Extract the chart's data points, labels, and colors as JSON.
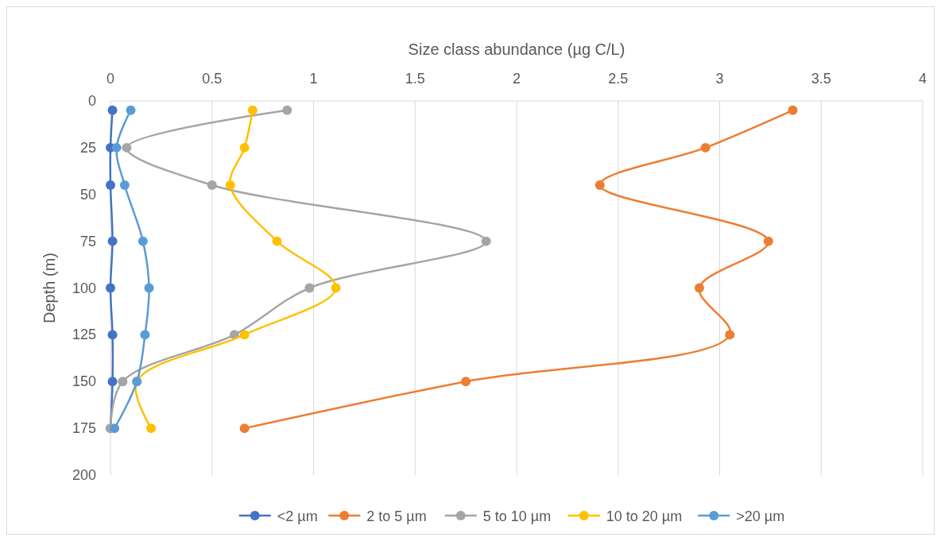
{
  "chart_data": {
    "type": "line",
    "xlabel": "Size class abundance (µg C/L)",
    "ylabel": "Depth (m)",
    "xlim": [
      0,
      4
    ],
    "xticks": [
      0,
      0.5,
      1,
      1.5,
      2,
      2.5,
      3,
      3.5,
      4
    ],
    "ylim": [
      200,
      0
    ],
    "yticks": [
      0,
      25,
      50,
      75,
      100,
      125,
      150,
      175,
      200
    ],
    "grid": "x",
    "legend": "bottom",
    "marker": "circle",
    "series": [
      {
        "name": "<2 µm",
        "color": "#4472c4",
        "x": [
          0.01,
          0,
          0,
          0.01,
          0,
          0.01,
          0.01,
          0
        ],
        "values": [
          5,
          25,
          45,
          75,
          100,
          125,
          150,
          175
        ]
      },
      {
        "name": "2 to 5 µm",
        "color": "#ed7d31",
        "x": [
          3.36,
          2.93,
          2.41,
          3.24,
          2.9,
          3.05,
          1.75,
          0.66
        ],
        "values": [
          5,
          25,
          45,
          75,
          100,
          125,
          150,
          175
        ]
      },
      {
        "name": "5 to 10 µm",
        "color": "#a5a5a5",
        "x": [
          0.87,
          0.08,
          0.5,
          1.85,
          0.98,
          0.61,
          0.06,
          0
        ],
        "values": [
          5,
          25,
          45,
          75,
          100,
          125,
          150,
          175
        ]
      },
      {
        "name": "10 to 20 µm",
        "color": "#ffc000",
        "x": [
          0.7,
          0.66,
          0.59,
          0.82,
          1.11,
          0.66,
          0.13,
          0.2
        ],
        "values": [
          5,
          25,
          45,
          75,
          100,
          125,
          150,
          175
        ]
      },
      {
        "name": ">20 µm",
        "color": "#5b9bd5",
        "x": [
          0.1,
          0.03,
          0.07,
          0.16,
          0.19,
          0.17,
          0.13,
          0.02
        ],
        "values": [
          5,
          25,
          45,
          75,
          100,
          125,
          150,
          175
        ]
      }
    ]
  }
}
